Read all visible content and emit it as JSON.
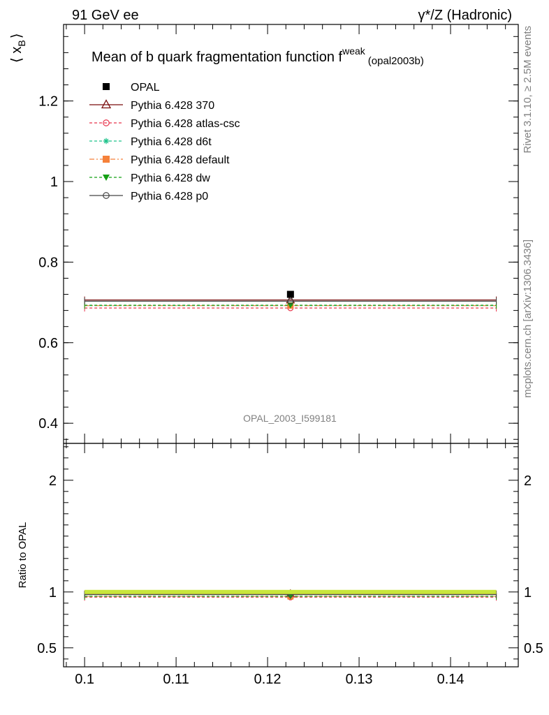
{
  "header": {
    "left": "91 GeV ee",
    "right": "γ*/Z (Hadronic)"
  },
  "side_labels": {
    "rivet": "Rivet 3.1.10, ≥ 2.5M events",
    "mcplots": "mcplots.cern.ch [arXiv:1306.3436]"
  },
  "chart_data": [
    {
      "type": "scatter",
      "title": "Mean of b quark fragmentation function f",
      "title_sup": "weak",
      "title_suffix": "(opal2003b)",
      "ylabel_main": "⟨ x",
      "ylabel_sub": "B",
      "ylabel_end": "⟩",
      "watermark": "OPAL_2003_I599181",
      "xlim": [
        0.0977,
        0.1474
      ],
      "ylim": [
        0.35,
        1.39
      ],
      "x_ticks": [
        "0.1",
        "0.11",
        "0.12",
        "0.13",
        "0.14"
      ],
      "y_ticks": [
        "0.4",
        "0.6",
        "0.8",
        "1",
        "1.2"
      ],
      "x_range": [
        0.1,
        0.145
      ],
      "x_point": 0.1225,
      "series": [
        {
          "name": "OPAL",
          "value": 0.72,
          "color": "#000000",
          "marker": "square-filled",
          "dash": "none",
          "is_data": true
        },
        {
          "name": "Pythia 6.428 370",
          "value": 0.706,
          "color": "#7a0c0c",
          "marker": "triangle-open",
          "dash": "none"
        },
        {
          "name": "Pythia 6.428 atlas-csc",
          "value": 0.686,
          "color": "#e8334a",
          "marker": "circle-open",
          "dash": "4,3"
        },
        {
          "name": "Pythia 6.428 d6t",
          "value": 0.692,
          "color": "#1cc28a",
          "marker": "star",
          "dash": "4,3"
        },
        {
          "name": "Pythia 6.428 default",
          "value": 0.692,
          "color": "#f5813a",
          "marker": "square-filled",
          "dash": "7,3,2,3"
        },
        {
          "name": "Pythia 6.428 dw",
          "value": 0.693,
          "color": "#15a015",
          "marker": "triangle-down-filled",
          "dash": "4,3"
        },
        {
          "name": "Pythia 6.428 p0",
          "value": 0.703,
          "color": "#444444",
          "marker": "circle-open",
          "dash": "none"
        }
      ]
    },
    {
      "type": "scatter",
      "ylabel": "Ratio to OPAL",
      "ylim": [
        0.33,
        2.33
      ],
      "y_ticks": [
        "0.5",
        "1",
        "2"
      ],
      "series": [
        {
          "name": "OPAL",
          "value": 1.0,
          "color": "#c8e63c",
          "marker": "square-filled",
          "dash": "none",
          "is_data": true
        },
        {
          "name": "Pythia 6.428 370",
          "value": 0.981,
          "color": "#7a0c0c",
          "marker": "triangle-open",
          "dash": "none"
        },
        {
          "name": "Pythia 6.428 atlas-csc",
          "value": 0.953,
          "color": "#e8334a",
          "marker": "circle-open",
          "dash": "4,3"
        },
        {
          "name": "Pythia 6.428 d6t",
          "value": 0.961,
          "color": "#1cc28a",
          "marker": "star",
          "dash": "4,3"
        },
        {
          "name": "Pythia 6.428 default",
          "value": 0.961,
          "color": "#f5813a",
          "marker": "square-filled",
          "dash": "7,3,2,3"
        },
        {
          "name": "Pythia 6.428 dw",
          "value": 0.962,
          "color": "#15a015",
          "marker": "triangle-down-filled",
          "dash": "4,3"
        },
        {
          "name": "Pythia 6.428 p0",
          "value": 0.977,
          "color": "#444444",
          "marker": "circle-open",
          "dash": "none"
        }
      ]
    }
  ]
}
